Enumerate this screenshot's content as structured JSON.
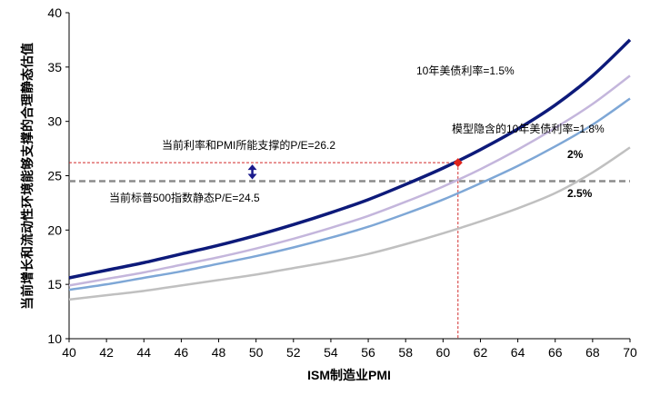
{
  "chart_data": {
    "type": "line",
    "xlabel": "ISM制造业PMI",
    "ylabel": "当前增长和流动性环境能够支撑的合理静态估值",
    "xlim": [
      40,
      70
    ],
    "ylim": [
      10,
      40
    ],
    "xticks": [
      40,
      42,
      44,
      46,
      48,
      50,
      52,
      54,
      56,
      58,
      60,
      62,
      64,
      66,
      68,
      70
    ],
    "yticks": [
      10,
      15,
      20,
      25,
      30,
      35,
      40
    ],
    "grid": false,
    "x": [
      40,
      42,
      44,
      46,
      48,
      50,
      52,
      54,
      56,
      58,
      60,
      62,
      64,
      66,
      68,
      70
    ],
    "series": [
      {
        "name": "1.5%",
        "color": "#0d1a7a",
        "width": 3.5,
        "values": [
          15.6,
          16.3,
          17.0,
          17.8,
          18.6,
          19.5,
          20.5,
          21.6,
          22.8,
          24.2,
          25.7,
          27.4,
          29.3,
          31.5,
          34.2,
          37.5
        ]
      },
      {
        "name": "1.8%",
        "color": "#c4b6dc",
        "width": 2.5,
        "values": [
          14.9,
          15.5,
          16.1,
          16.8,
          17.5,
          18.3,
          19.2,
          20.2,
          21.3,
          22.6,
          24.0,
          25.6,
          27.4,
          29.4,
          31.6,
          34.2
        ]
      },
      {
        "name": "2%",
        "color": "#7ea7d6",
        "width": 2.5,
        "values": [
          14.5,
          15.0,
          15.6,
          16.2,
          16.9,
          17.6,
          18.4,
          19.3,
          20.3,
          21.5,
          22.8,
          24.3,
          25.9,
          27.7,
          29.7,
          32.1
        ]
      },
      {
        "name": "2.5%",
        "color": "#c0c0c0",
        "width": 2.5,
        "values": [
          13.6,
          14.0,
          14.4,
          14.9,
          15.4,
          15.9,
          16.5,
          17.1,
          17.8,
          18.7,
          19.7,
          20.8,
          22.0,
          23.4,
          25.3,
          27.6
        ]
      }
    ],
    "reference_lines": {
      "current_pe": 26.2,
      "current_pmi": 60.8,
      "sp500_pe": 24.5
    },
    "marker": {
      "x": 60.8,
      "y": 26.2,
      "color": "#e0241b"
    },
    "gap_arrow_x": 49.8,
    "annotations": {
      "rate_15": "10年美债利率=1.5%",
      "rate_18": "模型隐含的10年美债利率=1.8%",
      "rate_2": "2%",
      "rate_25": "2.5%",
      "current_support": "当前利率和PMI所能支撑的P/E=26.2",
      "sp500": "当前标普500指数静态P/E=24.5"
    }
  }
}
